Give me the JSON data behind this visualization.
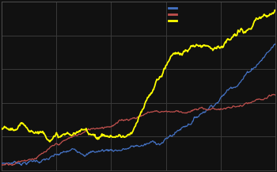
{
  "background_color": "#111111",
  "plot_bg_color": "#111111",
  "grid_color": "#3a3a3a",
  "line_colors": [
    "#4472c4",
    "#c0504d",
    "#ffff00"
  ],
  "legend_line_colors": [
    "#4472c4",
    "#c0504d",
    "#ffff00"
  ],
  "figsize": [
    3.5,
    2.17
  ],
  "dpi": 100,
  "n_points": 500,
  "seed": 7,
  "ylim": [
    0.0,
    1.0
  ],
  "grid_nx": 7,
  "grid_ny": 6
}
